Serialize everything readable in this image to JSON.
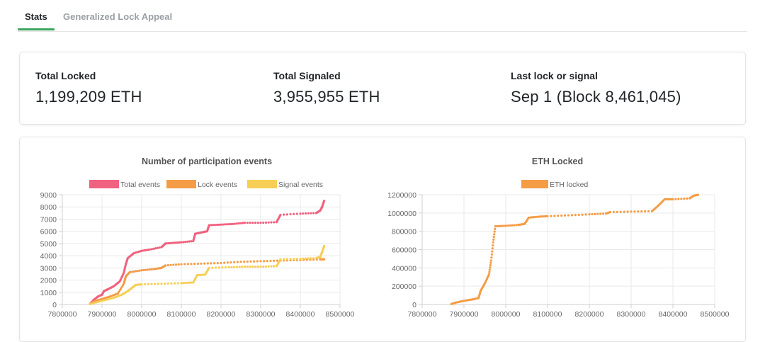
{
  "tabs": [
    {
      "label": "Stats",
      "active": true
    },
    {
      "label": "Generalized Lock Appeal",
      "active": false
    }
  ],
  "stats": [
    {
      "label": "Total Locked",
      "value": "1,199,209 ETH"
    },
    {
      "label": "Total Signaled",
      "value": "3,955,955 ETH"
    },
    {
      "label": "Last lock or signal",
      "value": "Sep 1 (Block 8,461,045)"
    }
  ],
  "colors": {
    "total": "#f0627f",
    "lock": "#f59c46",
    "signal": "#f7cf57",
    "eth": "#f59c46",
    "accent": "#3aa55d"
  },
  "chart_data": [
    {
      "type": "scatter",
      "title": "Number of participation events",
      "xlabel": "",
      "ylabel": "",
      "xlim": [
        7800000,
        8500000
      ],
      "ylim": [
        0,
        9000
      ],
      "x_ticks": [
        "7800000",
        "7900000",
        "8000000",
        "8100000",
        "8200000",
        "8300000",
        "8400000",
        "8500000"
      ],
      "y_ticks": [
        "0",
        "1000",
        "2000",
        "3000",
        "4000",
        "5000",
        "6000",
        "7000",
        "8000",
        "9000"
      ],
      "legend": "top",
      "grid": true,
      "series": [
        {
          "name": "Total events",
          "color": "#f0627f",
          "points": [
            [
              7870000,
              50
            ],
            [
              7880000,
              400
            ],
            [
              7890000,
              650
            ],
            [
              7900000,
              800
            ],
            [
              7905000,
              1100
            ],
            [
              7915000,
              1250
            ],
            [
              7930000,
              1500
            ],
            [
              7945000,
              1900
            ],
            [
              7955000,
              2600
            ],
            [
              7960000,
              3300
            ],
            [
              7965000,
              3800
            ],
            [
              7980000,
              4200
            ],
            [
              8000000,
              4400
            ],
            [
              8020000,
              4500
            ],
            [
              8050000,
              4700
            ],
            [
              8060000,
              5000
            ],
            [
              8080000,
              5050
            ],
            [
              8100000,
              5100
            ],
            [
              8130000,
              5200
            ],
            [
              8135000,
              5800
            ],
            [
              8150000,
              5900
            ],
            [
              8165000,
              6000
            ],
            [
              8170000,
              6500
            ],
            [
              8200000,
              6550
            ],
            [
              8230000,
              6600
            ],
            [
              8260000,
              6700
            ],
            [
              8300000,
              6700
            ],
            [
              8340000,
              6750
            ],
            [
              8350000,
              7350
            ],
            [
              8400000,
              7450
            ],
            [
              8440000,
              7500
            ],
            [
              8450000,
              7700
            ],
            [
              8455000,
              8000
            ],
            [
              8460000,
              8500
            ]
          ]
        },
        {
          "name": "Lock events",
          "color": "#f59c46",
          "points": [
            [
              7870000,
              40
            ],
            [
              7880000,
              250
            ],
            [
              7900000,
              450
            ],
            [
              7920000,
              650
            ],
            [
              7940000,
              900
            ],
            [
              7955000,
              1700
            ],
            [
              7960000,
              2300
            ],
            [
              7970000,
              2650
            ],
            [
              8000000,
              2800
            ],
            [
              8030000,
              2900
            ],
            [
              8050000,
              3000
            ],
            [
              8060000,
              3200
            ],
            [
              8100000,
              3300
            ],
            [
              8150000,
              3350
            ],
            [
              8200000,
              3400
            ],
            [
              8250000,
              3500
            ],
            [
              8300000,
              3550
            ],
            [
              8350000,
              3600
            ],
            [
              8400000,
              3650
            ],
            [
              8450000,
              3700
            ],
            [
              8460000,
              3700
            ]
          ]
        },
        {
          "name": "Signal events",
          "color": "#f7cf57",
          "points": [
            [
              7870000,
              30
            ],
            [
              7900000,
              300
            ],
            [
              7930000,
              550
            ],
            [
              7950000,
              800
            ],
            [
              7965000,
              1100
            ],
            [
              7975000,
              1350
            ],
            [
              7985000,
              1600
            ],
            [
              8000000,
              1650
            ],
            [
              8050000,
              1700
            ],
            [
              8100000,
              1750
            ],
            [
              8130000,
              1800
            ],
            [
              8140000,
              2400
            ],
            [
              8160000,
              2450
            ],
            [
              8170000,
              3000
            ],
            [
              8220000,
              3050
            ],
            [
              8260000,
              3100
            ],
            [
              8300000,
              3100
            ],
            [
              8340000,
              3150
            ],
            [
              8350000,
              3700
            ],
            [
              8400000,
              3750
            ],
            [
              8440000,
              3800
            ],
            [
              8450000,
              3900
            ],
            [
              8455000,
              4300
            ],
            [
              8460000,
              4800
            ]
          ]
        }
      ]
    },
    {
      "type": "scatter",
      "title": "ETH Locked",
      "xlabel": "",
      "ylabel": "",
      "xlim": [
        7800000,
        8500000
      ],
      "ylim": [
        0,
        1200000
      ],
      "x_ticks": [
        "7800000",
        "7900000",
        "8000000",
        "8100000",
        "8200000",
        "8300000",
        "8400000",
        "8500000"
      ],
      "y_ticks": [
        "0",
        "200000",
        "400000",
        "600000",
        "800000",
        "1000000",
        "1200000"
      ],
      "legend": "top",
      "grid": true,
      "series": [
        {
          "name": "ETH locked",
          "color": "#f59c46",
          "points": [
            [
              7870000,
              5000
            ],
            [
              7880000,
              20000
            ],
            [
              7900000,
              40000
            ],
            [
              7920000,
              55000
            ],
            [
              7935000,
              70000
            ],
            [
              7940000,
              150000
            ],
            [
              7950000,
              230000
            ],
            [
              7960000,
              330000
            ],
            [
              7965000,
              480000
            ],
            [
              7970000,
              680000
            ],
            [
              7975000,
              855000
            ],
            [
              8000000,
              860000
            ],
            [
              8030000,
              870000
            ],
            [
              8045000,
              880000
            ],
            [
              8055000,
              950000
            ],
            [
              8080000,
              960000
            ],
            [
              8100000,
              965000
            ],
            [
              8150000,
              975000
            ],
            [
              8200000,
              985000
            ],
            [
              8240000,
              995000
            ],
            [
              8250000,
              1010000
            ],
            [
              8300000,
              1015000
            ],
            [
              8350000,
              1020000
            ],
            [
              8365000,
              1080000
            ],
            [
              8380000,
              1150000
            ],
            [
              8400000,
              1150000
            ],
            [
              8440000,
              1160000
            ],
            [
              8450000,
              1190000
            ],
            [
              8460000,
              1199209
            ]
          ]
        }
      ]
    }
  ]
}
